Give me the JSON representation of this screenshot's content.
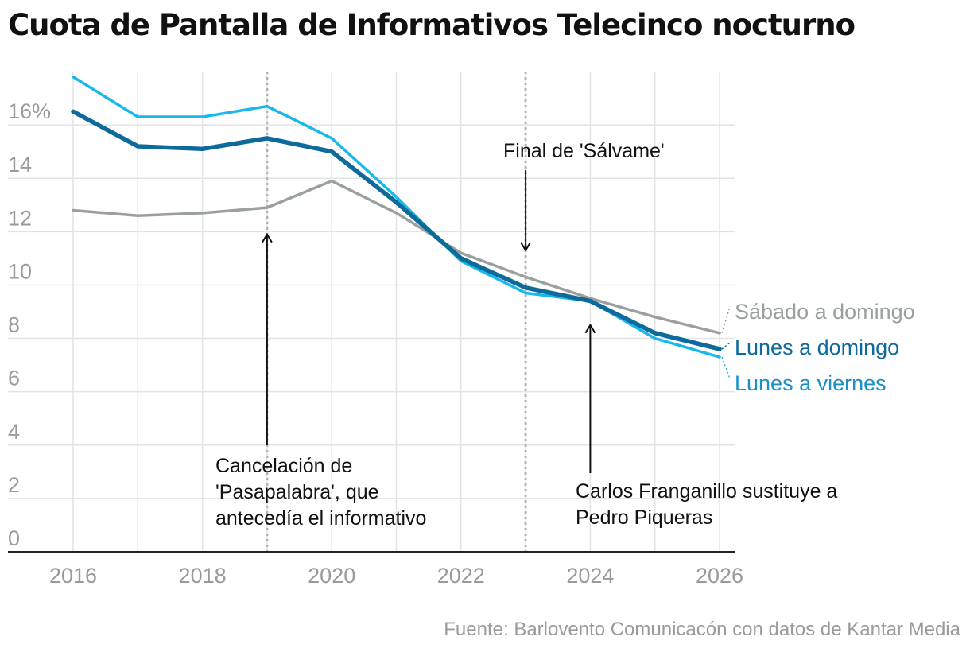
{
  "chart_data": {
    "type": "line",
    "title": "Cuota de Pantalla de Informativos Telecinco nocturno",
    "xlabel": "",
    "ylabel": "",
    "xlim": [
      2016,
      2026
    ],
    "ylim": [
      0,
      18
    ],
    "x_ticks": [
      "2016",
      "2018",
      "2020",
      "2022",
      "2024",
      "2026"
    ],
    "x_tick_values": [
      2016,
      2018,
      2020,
      2022,
      2024,
      2026
    ],
    "y_ticks": [
      "0",
      "2",
      "4",
      "6",
      "8",
      "10",
      "12",
      "14",
      "16%"
    ],
    "y_tick_values": [
      0,
      2,
      4,
      6,
      8,
      10,
      12,
      14,
      16
    ],
    "grid": true,
    "x": [
      2016,
      2017,
      2018,
      2019,
      2020,
      2021,
      2022,
      2023,
      2024,
      2025,
      2026
    ],
    "series": [
      {
        "name": "Sábado a domingo",
        "color": "#9aa0a0",
        "values": [
          12.8,
          12.6,
          12.7,
          12.9,
          13.9,
          12.7,
          11.2,
          10.3,
          9.5,
          8.8,
          8.2
        ]
      },
      {
        "name": "Lunes a domingo",
        "color": "#0d6a9b",
        "values": [
          16.5,
          15.2,
          15.1,
          15.5,
          15.0,
          13.1,
          11.0,
          9.9,
          9.4,
          8.2,
          7.6
        ]
      },
      {
        "name": "Lunes a viernes",
        "color": "#19b8ec",
        "label_color": "#1a8fc9",
        "values": [
          17.8,
          16.3,
          16.3,
          16.7,
          15.5,
          13.3,
          10.9,
          9.7,
          9.4,
          8.0,
          7.3
        ]
      }
    ],
    "annotations": [
      {
        "text": "Cancelación de 'Pasapalabra', que antecedía el informativo",
        "lines": [
          "Cancelación de",
          "'Pasapalabra', que",
          "antecedía el informativo"
        ],
        "x": 2019,
        "y": 11.9
      },
      {
        "text": "Final de 'Sálvame'",
        "lines": [
          "Final de 'Sálvame'"
        ],
        "x": 2023,
        "y": 11.3
      },
      {
        "text": "Carlos Franganillo sustituye a Pedro Piqueras",
        "lines": [
          "Carlos Franganillo sustituye a",
          "Pedro Piqueras"
        ],
        "x": 2024,
        "y": 8.5
      }
    ],
    "vertical_markers": [
      2019,
      2023
    ],
    "source": "Fuente: Barlovento Comunicacón con datos de Kantar Media"
  }
}
